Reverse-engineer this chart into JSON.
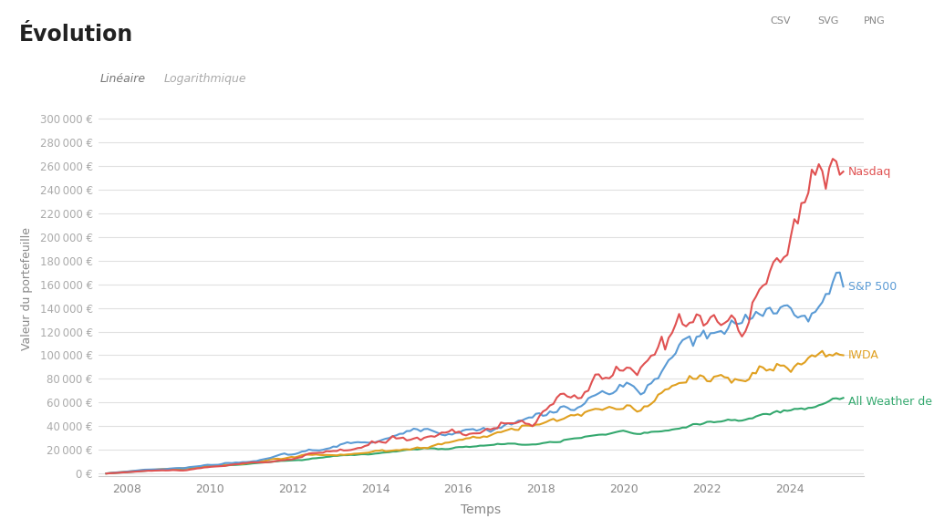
{
  "title": "Évolution",
  "xlabel": "Temps",
  "ylabel": "Valeur du portefeuille",
  "tab_linear": "Linéaire",
  "tab_log": "Logarithmique",
  "background_color": "#ffffff",
  "plot_bg_color": "#ffffff",
  "title_bg_color": "#c8f5c8",
  "series": [
    {
      "name": "Nasdaq",
      "color": "#e05252"
    },
    {
      "name": "S&P 500",
      "color": "#5b9bd5"
    },
    {
      "name": "IWDA",
      "color": "#e0a020"
    },
    {
      "name": "All Weather de Ray Dalio",
      "color": "#34a86e"
    }
  ],
  "yticks": [
    0,
    20000,
    40000,
    60000,
    80000,
    100000,
    120000,
    140000,
    160000,
    180000,
    200000,
    220000,
    240000,
    260000,
    280000,
    300000
  ],
  "xticks": [
    2008,
    2010,
    2012,
    2014,
    2016,
    2018,
    2020,
    2022,
    2024
  ],
  "ylim": [
    -2000,
    315000
  ],
  "xlim": [
    2007.3,
    2025.8
  ],
  "n_points": 212,
  "start_year": 2007.5,
  "end_year": 2025.3,
  "target_ends": [
    255000,
    158000,
    100000,
    64000
  ],
  "invest_monthly": 500
}
